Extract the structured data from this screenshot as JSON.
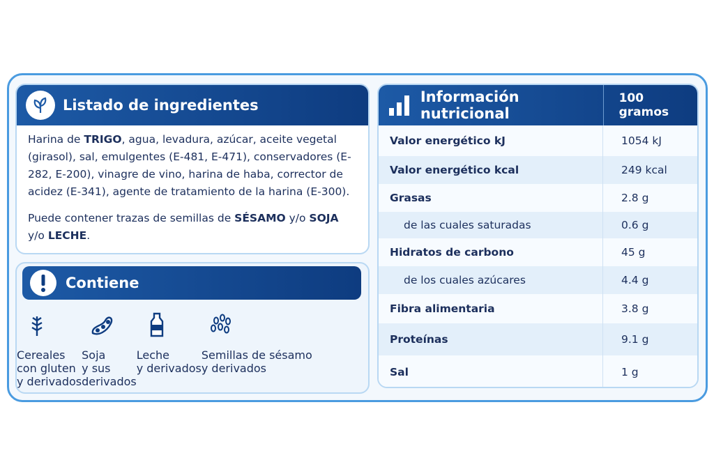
{
  "ingredients": {
    "title": "Listado de ingredientes",
    "paragraphs": [
      {
        "runs": [
          {
            "text": "Harina de "
          },
          {
            "text": "TRIGO",
            "bold": true
          },
          {
            "text": ", agua, levadura, azúcar, aceite vegetal (girasol), sal, emulgentes (E-481, E-471), conservadores (E-282, E-200), vinagre de vino, harina de haba, corrector de acidez (E-341), agente de tratamiento de la harina (E-300)."
          }
        ]
      },
      {
        "runs": [
          {
            "text": "Puede contener trazas de semillas de "
          },
          {
            "text": "SÉSAMO",
            "bold": true
          },
          {
            "text": " y/o "
          },
          {
            "text": "SOJA",
            "bold": true
          },
          {
            "text": " y/o "
          },
          {
            "text": "LECHE",
            "bold": true
          },
          {
            "text": "."
          }
        ]
      }
    ]
  },
  "contains": {
    "title": "Contiene",
    "items": [
      {
        "lines": [
          "Cereales",
          "con gluten",
          "y derivados"
        ]
      },
      {
        "lines": [
          "Soja",
          "y sus",
          "derivados"
        ]
      },
      {
        "lines": [
          "Leche",
          "y derivados"
        ]
      },
      {
        "lines": [
          "Semillas de sésamo",
          "y derivados"
        ]
      }
    ]
  },
  "nutrition": {
    "title": "Información nutricional",
    "column_header": "100 gramos",
    "rows": [
      {
        "name": "Valor energético kJ",
        "value": "1054 kJ"
      },
      {
        "name": "Valor energético kcal",
        "value": "249 kcal"
      },
      {
        "name": "Grasas",
        "value": "2.8 g"
      },
      {
        "name": "de las cuales saturadas",
        "value": "0.6 g",
        "indent": true
      },
      {
        "name": "Hidratos de carbono",
        "value": "45 g"
      },
      {
        "name": "de los cuales azúcares",
        "value": "4.4 g",
        "indent": true
      },
      {
        "name": "Fibra alimentaria",
        "value": "3.8 g"
      },
      {
        "name": "Proteínas",
        "value": "9.1 g"
      },
      {
        "name": "Sal",
        "value": "1 g"
      }
    ]
  }
}
